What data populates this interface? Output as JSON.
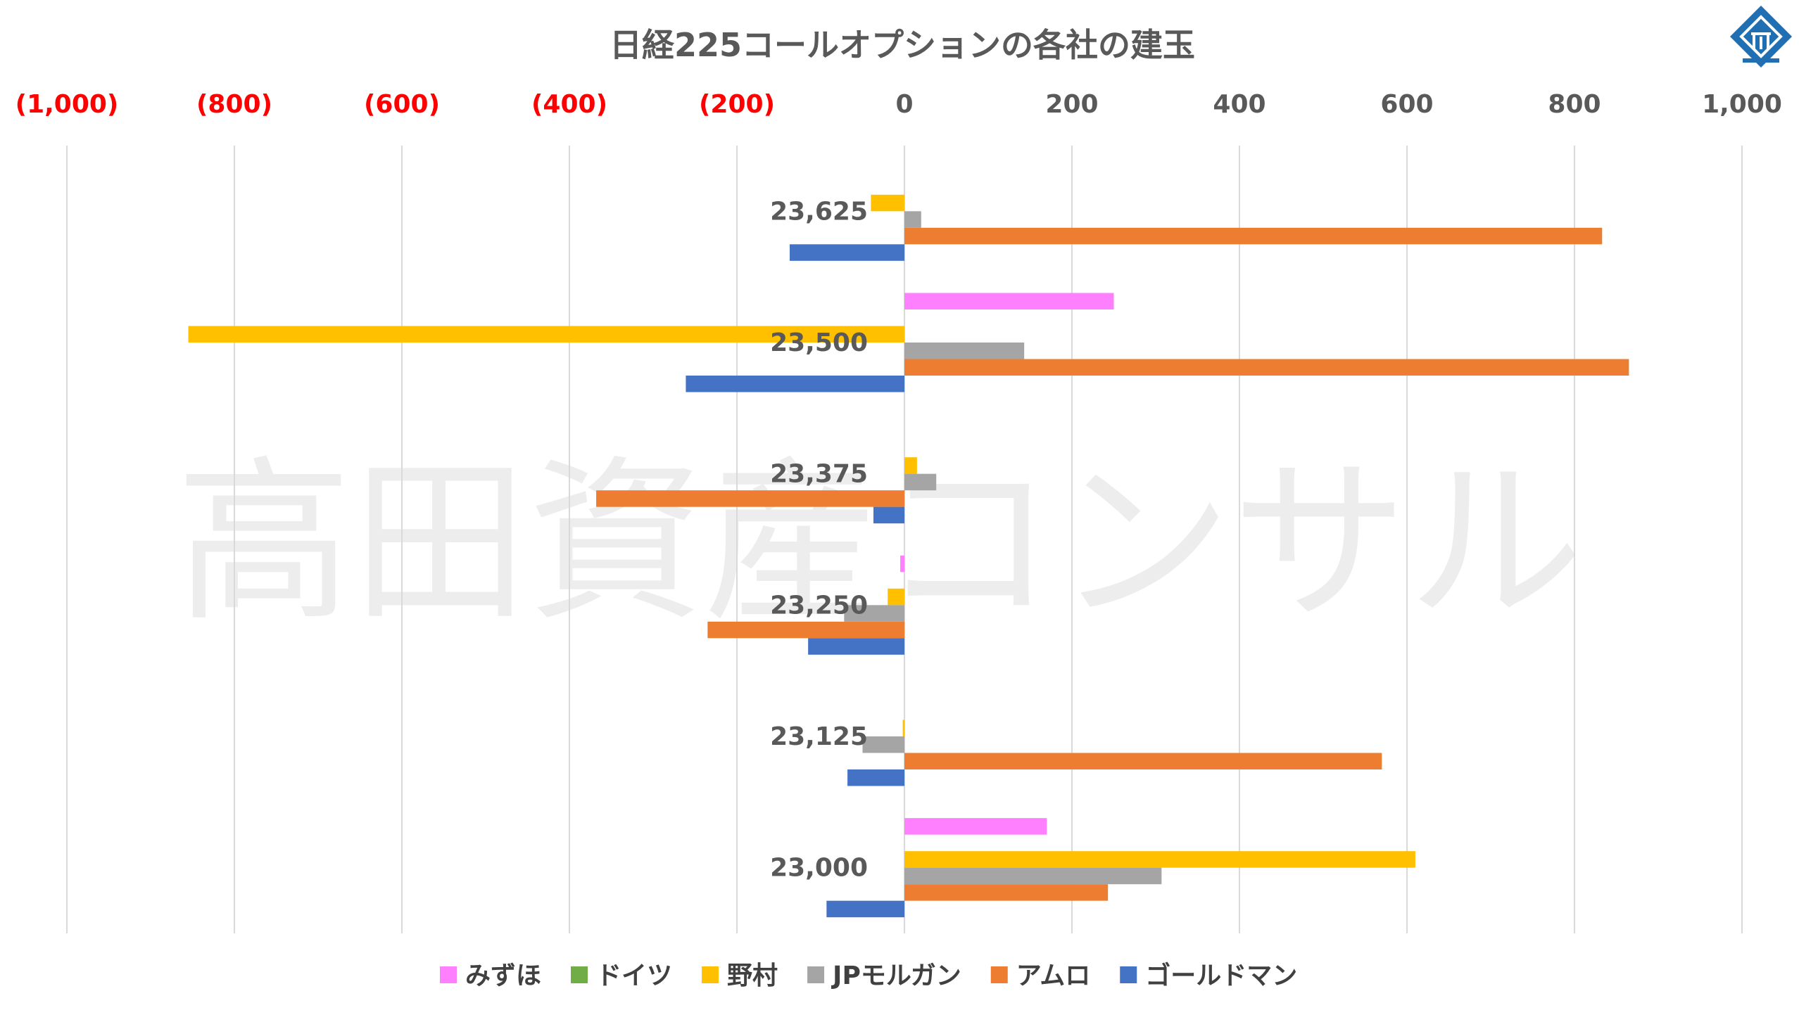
{
  "chart_data": {
    "type": "bar",
    "orientation": "horizontal",
    "title": "日経225コールオプションの各社の建玉",
    "watermark": "高田資産コンサル",
    "xlim": [
      -1000,
      1000
    ],
    "x_ticks": [
      {
        "value": -1000,
        "label": "(1,000)"
      },
      {
        "value": -800,
        "label": "(800)"
      },
      {
        "value": -600,
        "label": "(600)"
      },
      {
        "value": -400,
        "label": "(400)"
      },
      {
        "value": -200,
        "label": "(200)"
      },
      {
        "value": 0,
        "label": "0"
      },
      {
        "value": 200,
        "label": "200"
      },
      {
        "value": 400,
        "label": "400"
      },
      {
        "value": 600,
        "label": "600"
      },
      {
        "value": 800,
        "label": "800"
      },
      {
        "value": 1000,
        "label": "1,000"
      }
    ],
    "negative_tick_color": "#ff0000",
    "positive_tick_color": "#595959",
    "grid": true,
    "legend_position": "bottom",
    "categories": [
      "23,625",
      "23,500",
      "23,375",
      "23,250",
      "23,125",
      "23,000"
    ],
    "series": [
      {
        "name": "みずほ",
        "color": "#ff80ff",
        "values": [
          0,
          250,
          0,
          -5,
          0,
          170
        ]
      },
      {
        "name": "ドイツ",
        "color": "#70ad47",
        "values": [
          0,
          0,
          0,
          0,
          0,
          0
        ]
      },
      {
        "name": "野村",
        "color": "#ffc000",
        "values": [
          -40,
          -855,
          15,
          -20,
          -2,
          610
        ]
      },
      {
        "name": "JPモルガン",
        "color": "#a5a5a5",
        "values": [
          20,
          143,
          38,
          -72,
          -50,
          307
        ]
      },
      {
        "name": "アムロ",
        "color": "#ed7d31",
        "values": [
          833,
          865,
          -368,
          -235,
          570,
          243
        ]
      },
      {
        "name": "ゴールドマン",
        "color": "#4472c4",
        "values": [
          -137,
          -261,
          -37,
          -115,
          -68,
          -93
        ]
      }
    ]
  },
  "logo": {
    "name": "takata-logo",
    "color": "#1f6fb2"
  }
}
